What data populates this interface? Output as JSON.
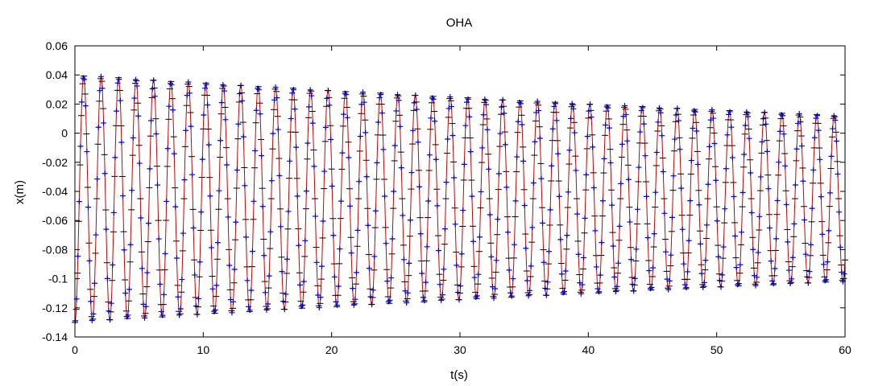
{
  "chart_data": {
    "type": "line",
    "title": "OHA",
    "xlabel": "t(s)",
    "ylabel": "x(m)",
    "xlim": [
      0,
      60
    ],
    "ylim": [
      -0.14,
      0.06
    ],
    "x_ticks": [
      0,
      10,
      20,
      30,
      40,
      50,
      60
    ],
    "x_tick_labels": [
      "0",
      "10",
      "20",
      "30",
      "40",
      "50",
      "60"
    ],
    "y_ticks": [
      -0.14,
      -0.12,
      -0.1,
      -0.08,
      -0.06,
      -0.04,
      -0.02,
      0,
      0.02,
      0.04,
      0.06
    ],
    "y_tick_labels": [
      "-0.14",
      "-0.12",
      "-0.1",
      "-0.08",
      "-0.06",
      "-0.04",
      "-0.02",
      "0",
      "0.02",
      "0.04",
      "0.06"
    ],
    "grid": false,
    "legend": "none",
    "signal": {
      "equilibrium_m": -0.045,
      "initial_amplitude_m": 0.085,
      "final_amplitude_m": 0.057,
      "period_s": 1.36,
      "initial_displacement_m": -0.13,
      "t_start_s": 0,
      "t_end_s": 60
    },
    "series": [
      {
        "style": "line",
        "color": "#cc0000"
      },
      {
        "style": "points",
        "marker": "plus",
        "color": "#0000cc",
        "sample_interval_s": 0.1
      },
      {
        "style": "points",
        "marker": "horizontal-dash",
        "color": "#000000",
        "sample_interval_s": 0.1
      }
    ]
  }
}
